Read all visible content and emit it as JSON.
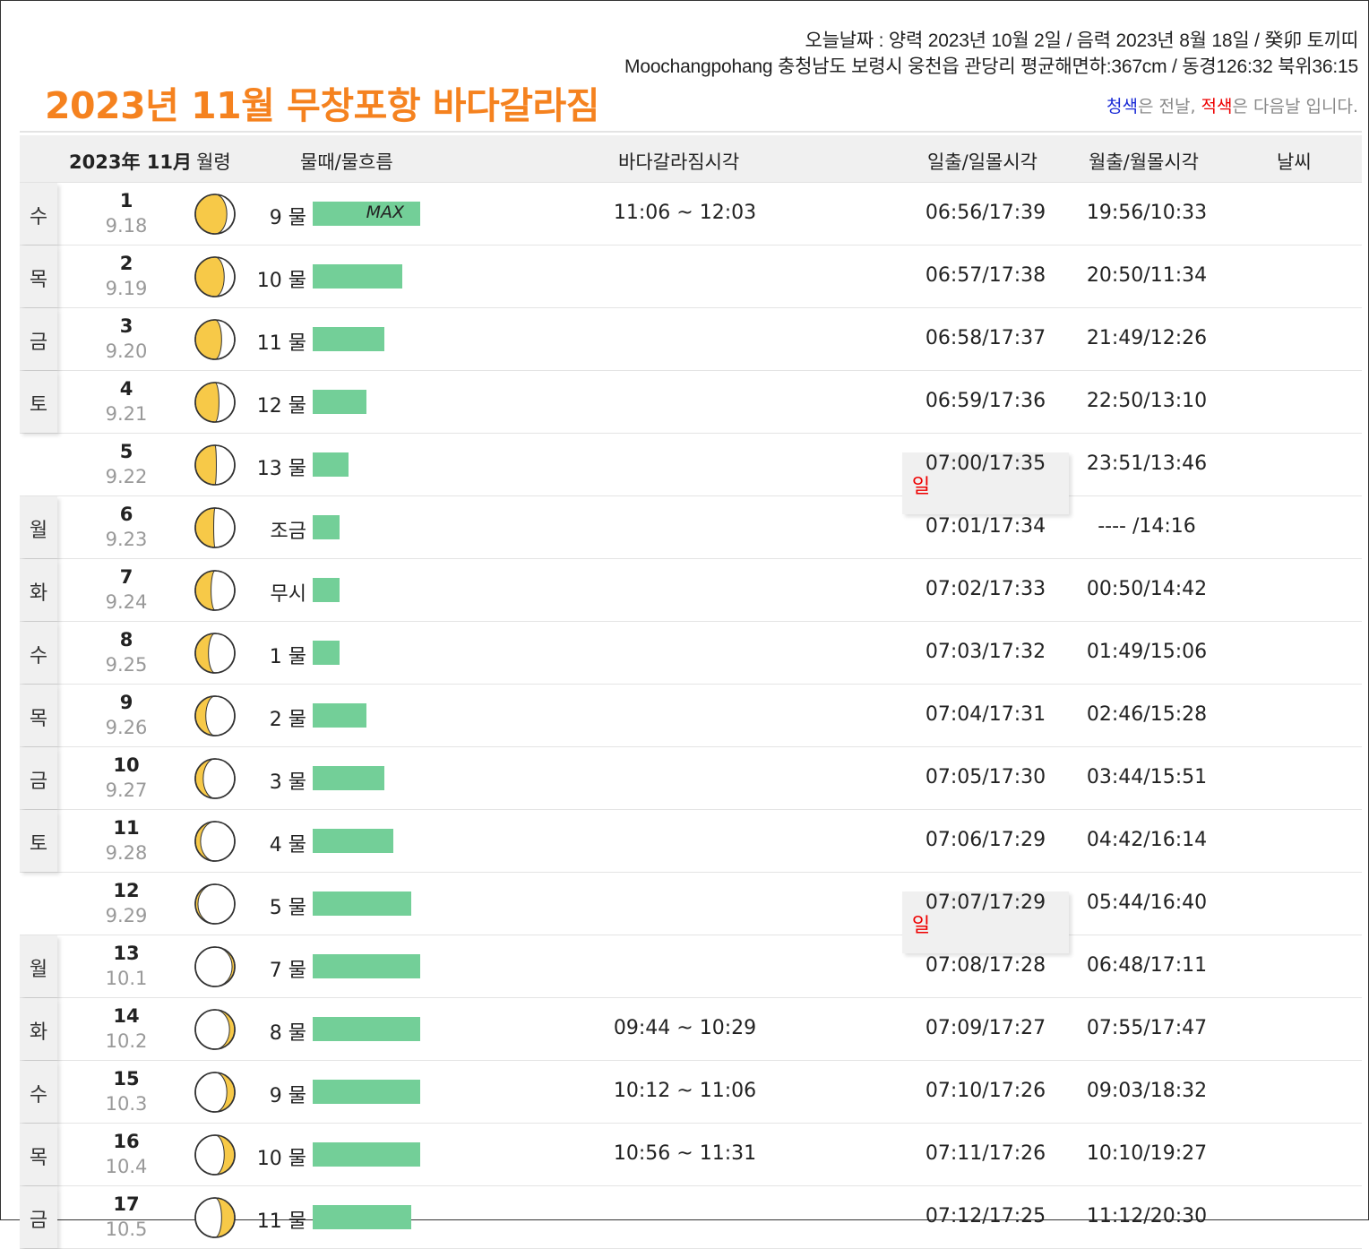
{
  "header": {
    "today_line": "오늘날짜 : 양력 2023년 10월 2일 / 음력 2023년 8월 18일 / 癸卯 토끼띠",
    "location_line": "Moochangpohang 충청남도 보령시 웅천읍 관당리 평균해면하:367cm / 동경126:32 북위36:15",
    "title": "2023년 11월 무창포항 바다갈라짐",
    "legend_blue": "청색",
    "legend_mid": "은 전날, ",
    "legend_red": "적색",
    "legend_end": "은 다음날 입니다."
  },
  "table": {
    "headers": {
      "date": "2023年 11月",
      "moon": "월령",
      "tide": "물때/물흐름",
      "parting": "바다갈라짐시각",
      "sun": "일출/일몰시각",
      "moonrise": "월출/월몰시각",
      "weather": "날씨"
    },
    "max_label": "MAX",
    "colors": {
      "bar": "#73cf98",
      "moon_lit": "#f7c948",
      "sunday": "#e00000",
      "title": "#f5821f"
    },
    "rows": [
      {
        "weekday": "수",
        "sunday": false,
        "day": "1",
        "lunar": "9.18",
        "phase": 18,
        "tide": "9 물",
        "flow": 1.0,
        "max": true,
        "parting": "11:06 ~ 12:03",
        "sun": "06:56/17:39",
        "moon": "19:56/10:33"
      },
      {
        "weekday": "목",
        "sunday": false,
        "day": "2",
        "lunar": "9.19",
        "phase": 19,
        "tide": "10 물",
        "flow": 0.83,
        "max": false,
        "parting": "",
        "sun": "06:57/17:38",
        "moon": "20:50/11:34"
      },
      {
        "weekday": "금",
        "sunday": false,
        "day": "3",
        "lunar": "9.20",
        "phase": 20,
        "tide": "11 물",
        "flow": 0.67,
        "max": false,
        "parting": "",
        "sun": "06:58/17:37",
        "moon": "21:49/12:26"
      },
      {
        "weekday": "토",
        "sunday": false,
        "day": "4",
        "lunar": "9.21",
        "phase": 21,
        "tide": "12 물",
        "flow": 0.5,
        "max": false,
        "parting": "",
        "sun": "06:59/17:36",
        "moon": "22:50/13:10"
      },
      {
        "weekday": "일",
        "sunday": true,
        "day": "5",
        "lunar": "9.22",
        "phase": 22,
        "tide": "13 물",
        "flow": 0.33,
        "max": false,
        "parting": "",
        "sun": "07:00/17:35",
        "moon": "23:51/13:46"
      },
      {
        "weekday": "월",
        "sunday": false,
        "day": "6",
        "lunar": "9.23",
        "phase": 23,
        "tide": "조금",
        "flow": 0.25,
        "max": false,
        "parting": "",
        "sun": "07:01/17:34",
        "moon": "---- /14:16"
      },
      {
        "weekday": "화",
        "sunday": false,
        "day": "7",
        "lunar": "9.24",
        "phase": 24,
        "tide": "무시",
        "flow": 0.25,
        "max": false,
        "parting": "",
        "sun": "07:02/17:33",
        "moon": "00:50/14:42"
      },
      {
        "weekday": "수",
        "sunday": false,
        "day": "8",
        "lunar": "9.25",
        "phase": 25,
        "tide": "1 물",
        "flow": 0.25,
        "max": false,
        "parting": "",
        "sun": "07:03/17:32",
        "moon": "01:49/15:06"
      },
      {
        "weekday": "목",
        "sunday": false,
        "day": "9",
        "lunar": "9.26",
        "phase": 26,
        "tide": "2 물",
        "flow": 0.5,
        "max": false,
        "parting": "",
        "sun": "07:04/17:31",
        "moon": "02:46/15:28"
      },
      {
        "weekday": "금",
        "sunday": false,
        "day": "10",
        "lunar": "9.27",
        "phase": 27,
        "tide": "3 물",
        "flow": 0.67,
        "max": false,
        "parting": "",
        "sun": "07:05/17:30",
        "moon": "03:44/15:51"
      },
      {
        "weekday": "토",
        "sunday": false,
        "day": "11",
        "lunar": "9.28",
        "phase": 28,
        "tide": "4 물",
        "flow": 0.75,
        "max": false,
        "parting": "",
        "sun": "07:06/17:29",
        "moon": "04:42/16:14"
      },
      {
        "weekday": "일",
        "sunday": true,
        "day": "12",
        "lunar": "9.29",
        "phase": 29,
        "tide": "5 물",
        "flow": 0.92,
        "max": false,
        "parting": "",
        "sun": "07:07/17:29",
        "moon": "05:44/16:40"
      },
      {
        "weekday": "월",
        "sunday": false,
        "day": "13",
        "lunar": "10.1",
        "phase": 1,
        "tide": "7 물",
        "flow": 1.0,
        "max": false,
        "parting": "",
        "sun": "07:08/17:28",
        "moon": "06:48/17:11"
      },
      {
        "weekday": "화",
        "sunday": false,
        "day": "14",
        "lunar": "10.2",
        "phase": 2,
        "tide": "8 물",
        "flow": 1.0,
        "max": false,
        "parting": "09:44 ~ 10:29",
        "sun": "07:09/17:27",
        "moon": "07:55/17:47"
      },
      {
        "weekday": "수",
        "sunday": false,
        "day": "15",
        "lunar": "10.3",
        "phase": 3,
        "tide": "9 물",
        "flow": 1.0,
        "max": false,
        "parting": "10:12 ~ 11:06",
        "sun": "07:10/17:26",
        "moon": "09:03/18:32"
      },
      {
        "weekday": "목",
        "sunday": false,
        "day": "16",
        "lunar": "10.4",
        "phase": 4,
        "tide": "10 물",
        "flow": 1.0,
        "max": false,
        "parting": "10:56 ~ 11:31",
        "sun": "07:11/17:26",
        "moon": "10:10/19:27"
      },
      {
        "weekday": "금",
        "sunday": false,
        "day": "17",
        "lunar": "10.5",
        "phase": 5,
        "tide": "11 물",
        "flow": 0.92,
        "max": false,
        "parting": "",
        "sun": "07:12/17:25",
        "moon": "11:12/20:30"
      }
    ]
  }
}
